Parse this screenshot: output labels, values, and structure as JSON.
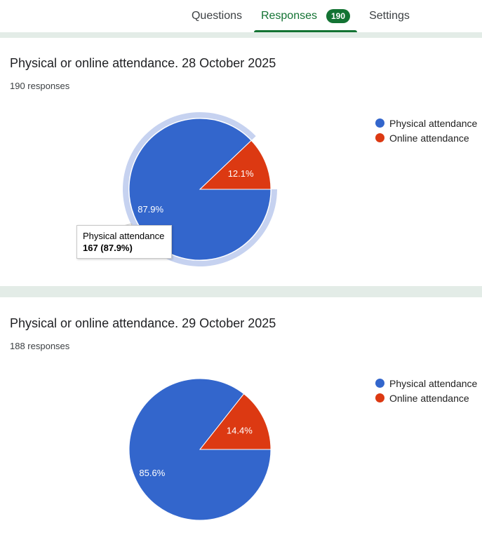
{
  "nav": {
    "tabs": [
      {
        "label": "Questions"
      },
      {
        "label": "Responses",
        "badge": "190"
      },
      {
        "label": "Settings"
      }
    ],
    "active_tab": "Responses",
    "accent": "#137333"
  },
  "colors": {
    "physical": "#3366cc",
    "online": "#dc3912"
  },
  "cards": [
    {
      "title": "Physical or online attendance. 28 October 2025",
      "responses": "190 responses",
      "legend": [
        "Physical attendance",
        "Online attendance"
      ],
      "tooltip": {
        "label": "Physical attendance",
        "value": "167 (87.9%)"
      }
    },
    {
      "title": "Physical or online attendance. 29 October 2025",
      "responses": "188 responses",
      "legend": [
        "Physical attendance",
        "Online attendance"
      ]
    }
  ],
  "chart_data": [
    {
      "type": "pie",
      "categories": [
        "Physical attendance",
        "Online attendance"
      ],
      "values": [
        167,
        23
      ],
      "labels": [
        "87.9%",
        "12.1%"
      ],
      "highlighted": "Physical attendance"
    },
    {
      "type": "pie",
      "categories": [
        "Physical attendance",
        "Online attendance"
      ],
      "values": [
        161,
        27
      ],
      "labels": [
        "85.6%",
        "14.4%"
      ]
    }
  ]
}
